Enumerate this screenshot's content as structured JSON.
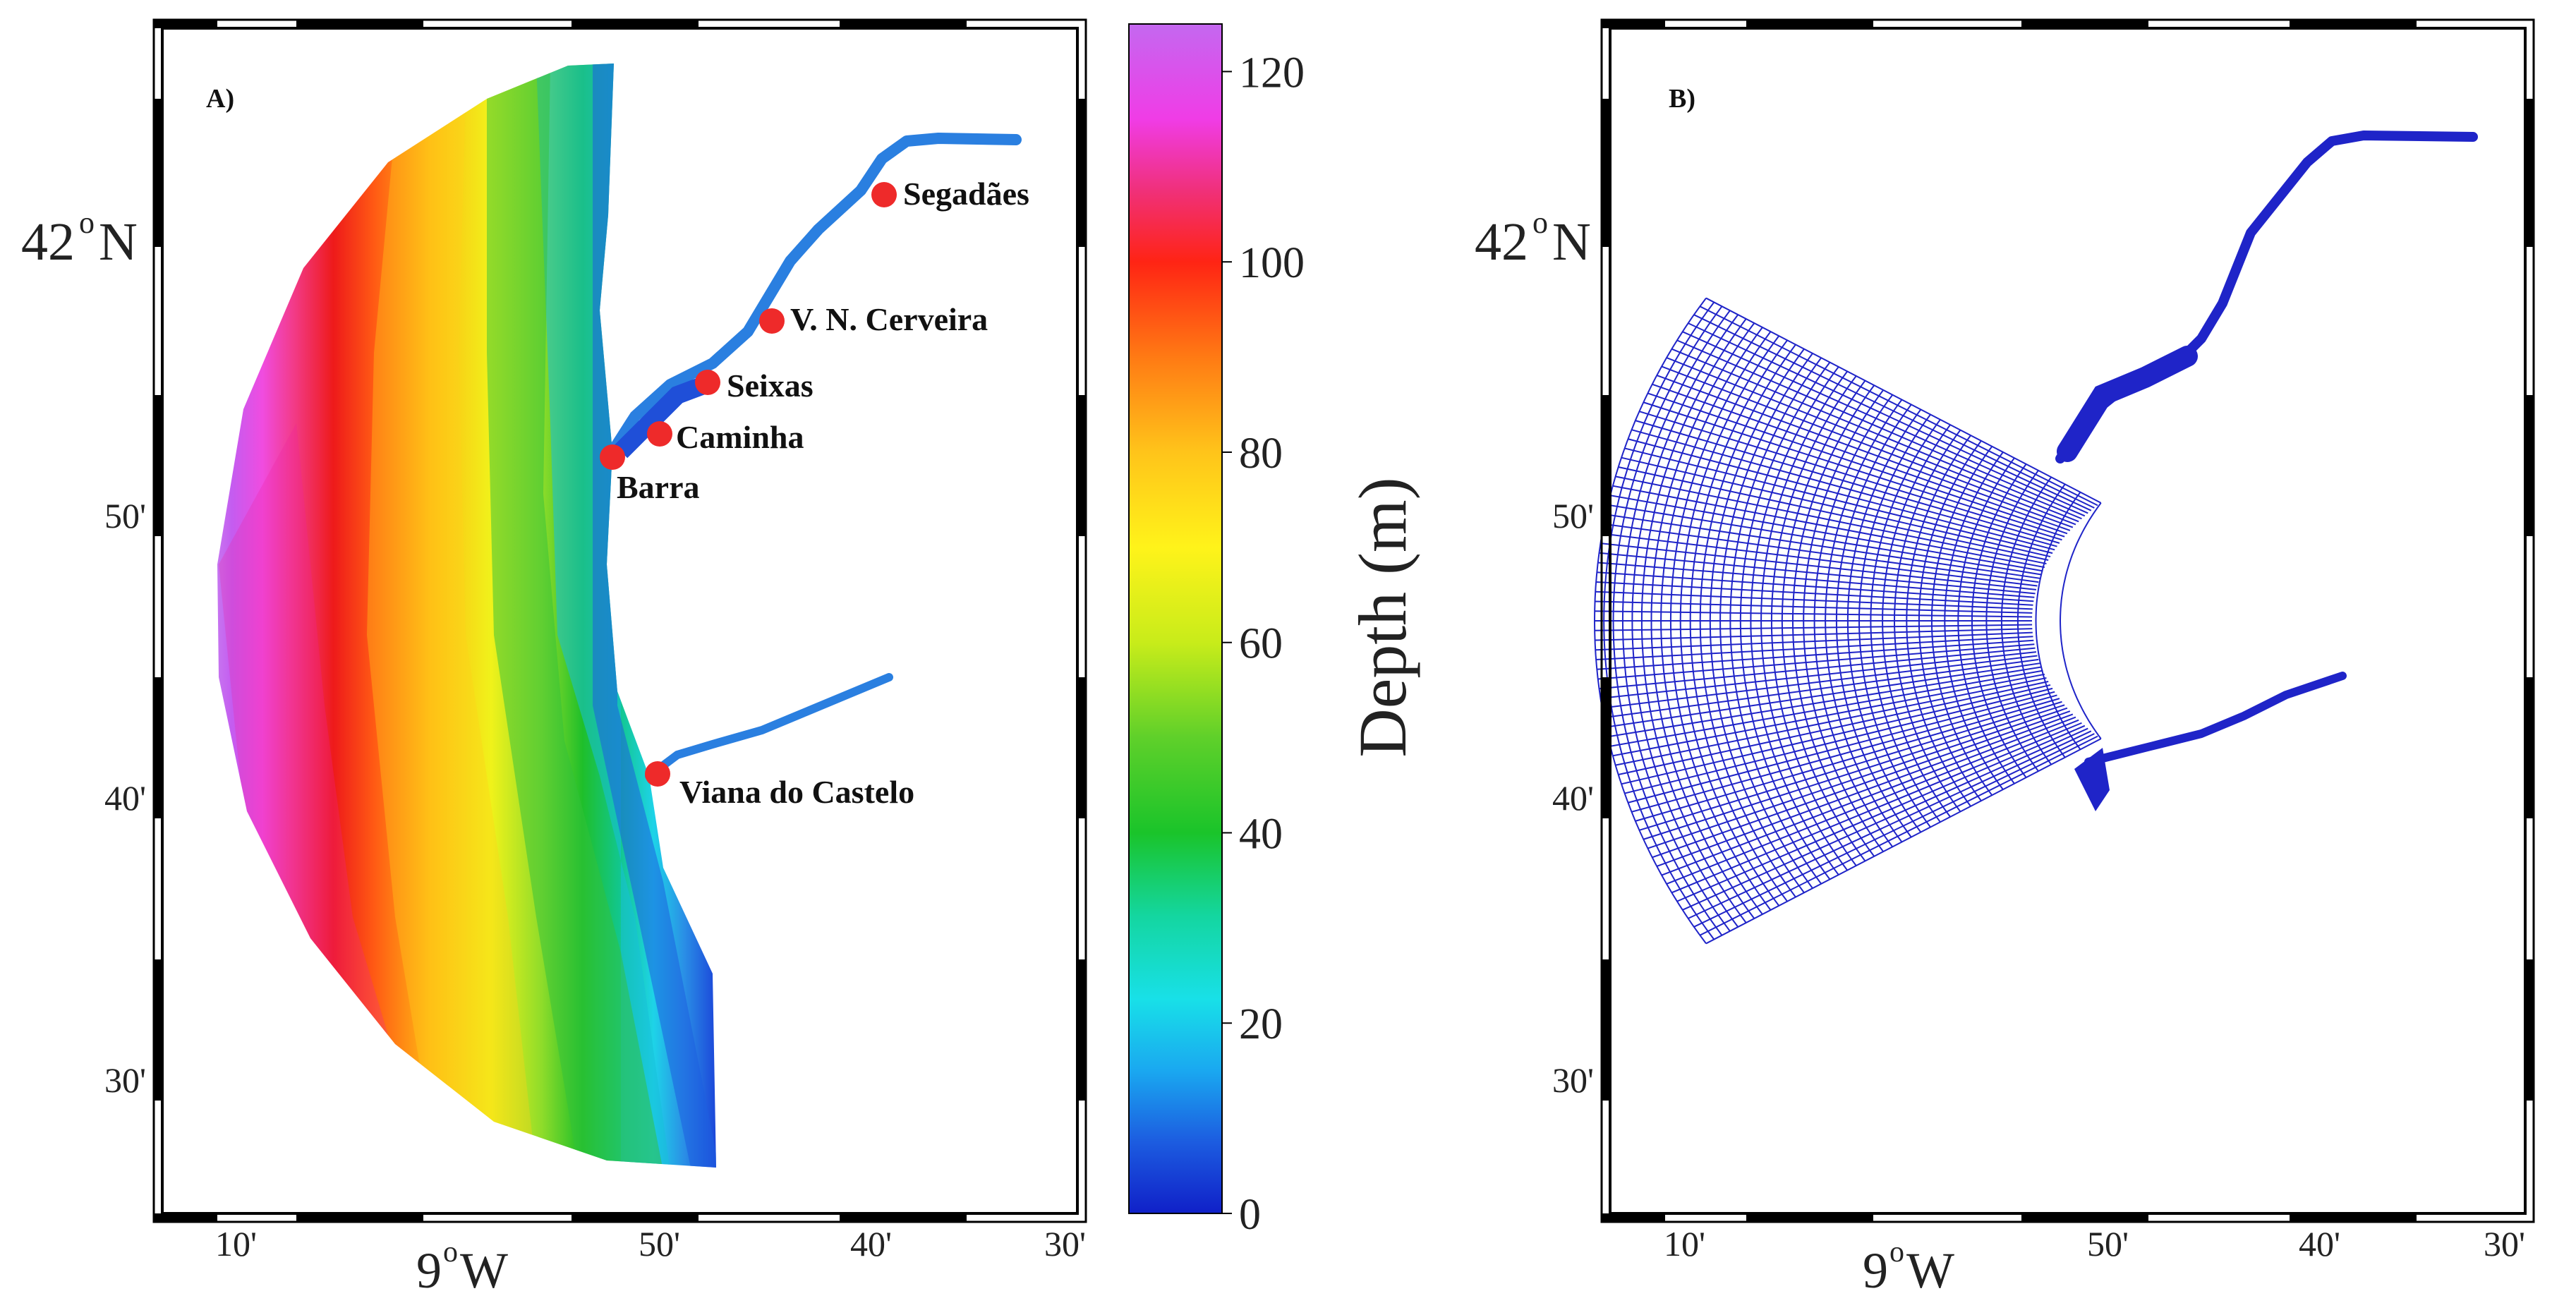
{
  "panel_a": {
    "label": "A)",
    "lat_labels": {
      "lat42": "42",
      "lat42_sup": "o",
      "lat42_suffix": "N",
      "m50": "50'",
      "m40": "40'",
      "m30": "30'"
    },
    "lon_labels": {
      "m10": "10'",
      "deg9": "9",
      "deg9_sup": "o",
      "deg9_suffix": "W",
      "m50": "50'",
      "m40": "40'",
      "m30": "30'"
    },
    "places": [
      "Segadães",
      "V. N. Cerveira",
      "Seixas",
      "Caminha",
      "Barra",
      "Viana do Castelo"
    ],
    "marker_color": "#ee2a2a"
  },
  "panel_b": {
    "label": "B)",
    "lat_labels": {
      "lat42": "42",
      "lat42_sup": "o",
      "lat42_suffix": "N",
      "m50": "50'",
      "m40": "40'",
      "m30": "30'"
    },
    "lon_labels": {
      "m10": "10'",
      "deg9": "9",
      "deg9_sup": "o",
      "deg9_suffix": "W",
      "m50": "50'",
      "m40": "40'",
      "m30": "30'"
    },
    "mesh_color": "#1f24c8"
  },
  "colorbar": {
    "title": "Depth (m)",
    "ticks": [
      "0",
      "20",
      "40",
      "60",
      "80",
      "100",
      "120"
    ],
    "range": [
      0,
      125
    ]
  }
}
